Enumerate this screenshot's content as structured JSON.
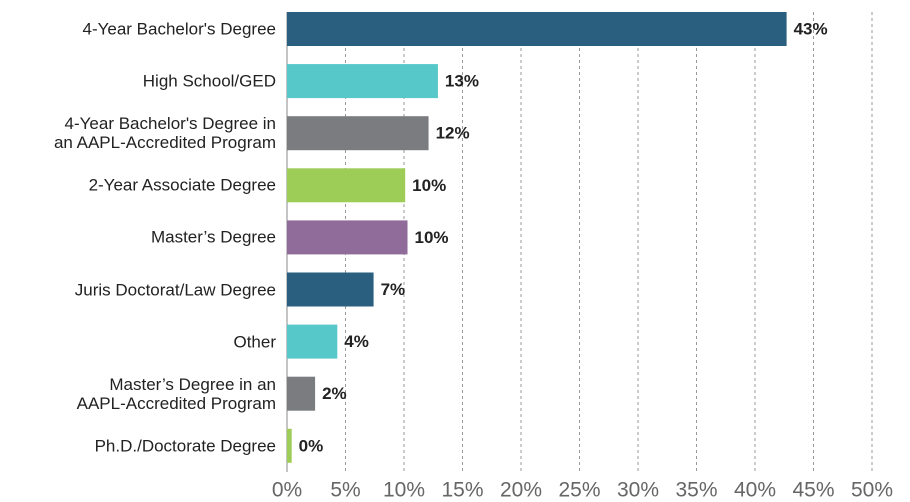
{
  "chart_data": {
    "type": "bar",
    "orientation": "horizontal",
    "categories": [
      "4-Year Bachelor's Degree",
      "High School/GED",
      "4-Year Bachelor's Degree in\nan AAPL-Accredited Program",
      "2-Year Associate Degree",
      "Master’s Degree",
      "Juris Doctorat/Law Degree",
      "Other",
      "Master’s Degree in an\nAAPL-Accredited Program",
      "Ph.D./Doctorate Degree"
    ],
    "values": [
      42.7,
      12.9,
      12.1,
      10.1,
      10.3,
      7.4,
      4.3,
      2.4,
      0.4
    ],
    "value_labels": [
      "43%",
      "13%",
      "12%",
      "10%",
      "10%",
      "7%",
      "4%",
      "2%",
      "0%"
    ],
    "colors": [
      "#2b5f80",
      "#56c8c9",
      "#7a7c7f",
      "#9dcc57",
      "#8f6c99",
      "#2b5f80",
      "#56c8c9",
      "#7a7c7f",
      "#9dcc57"
    ],
    "xlim": [
      0,
      50
    ],
    "xticks": [
      {
        "value": 0,
        "label": "0%"
      },
      {
        "value": 5,
        "label": "5%"
      },
      {
        "value": 10,
        "label": "10%"
      },
      {
        "value": 15,
        "label": "15%"
      },
      {
        "value": 20,
        "label": "20%"
      },
      {
        "value": 25,
        "label": "25%"
      },
      {
        "value": 30,
        "label": "30%"
      },
      {
        "value": 35,
        "label": "35%"
      },
      {
        "value": 40,
        "label": "40%"
      },
      {
        "value": 45,
        "label": "45%"
      },
      {
        "value": 50,
        "label": "50%"
      }
    ],
    "grid": true
  }
}
